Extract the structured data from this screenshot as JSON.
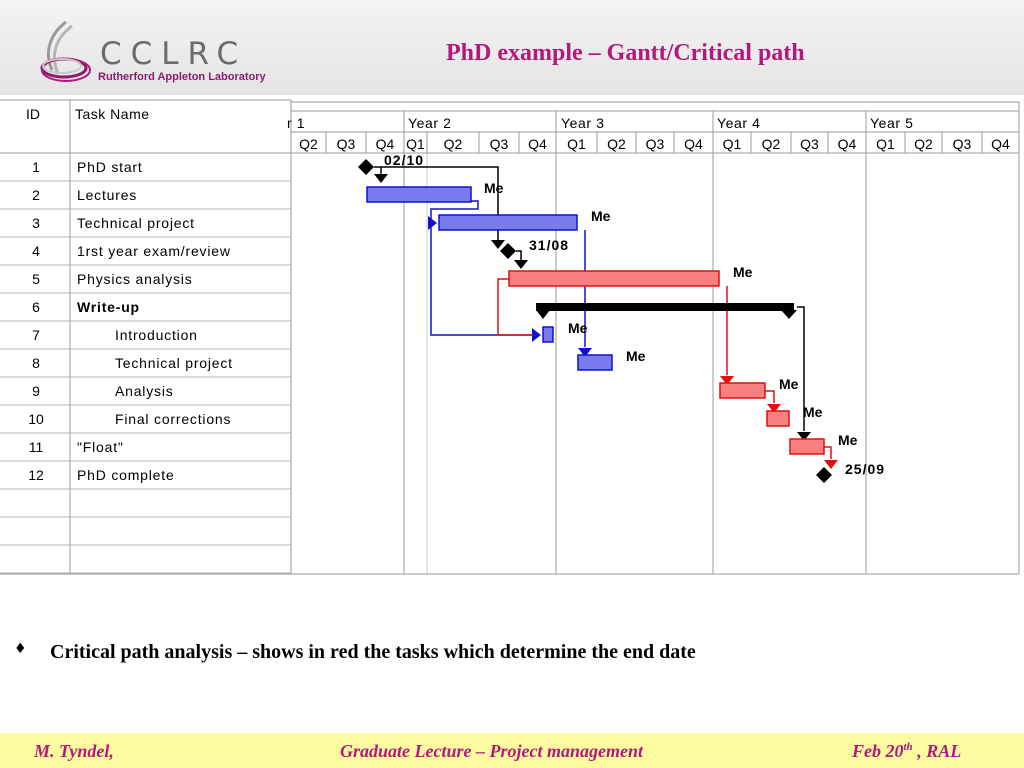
{
  "logo": {
    "name": "CCLRC",
    "subtitle": "Rutherford Appleton Laboratory"
  },
  "title": "PhD example – Gantt/Critical path",
  "table": {
    "headers": {
      "id": "ID",
      "task": "Task Name"
    },
    "rows": [
      {
        "id": "1",
        "name": "PhD start",
        "bold": false,
        "indent": false
      },
      {
        "id": "2",
        "name": "Lectures",
        "bold": false,
        "indent": false
      },
      {
        "id": "3",
        "name": "Technical project",
        "bold": false,
        "indent": false
      },
      {
        "id": "4",
        "name": "1rst year exam/review",
        "bold": false,
        "indent": false
      },
      {
        "id": "5",
        "name": "Physics analysis",
        "bold": false,
        "indent": false
      },
      {
        "id": "6",
        "name": "Write-up",
        "bold": true,
        "indent": false
      },
      {
        "id": "7",
        "name": "Introduction",
        "bold": false,
        "indent": true
      },
      {
        "id": "8",
        "name": "Technical project",
        "bold": false,
        "indent": true
      },
      {
        "id": "9",
        "name": "Analysis",
        "bold": false,
        "indent": true
      },
      {
        "id": "10",
        "name": "Final corrections",
        "bold": false,
        "indent": true
      },
      {
        "id": "11",
        "name": "\"Float\"",
        "bold": false,
        "indent": false
      },
      {
        "id": "12",
        "name": "PhD complete",
        "bold": false,
        "indent": false
      }
    ]
  },
  "timeline": {
    "years": [
      "r 1",
      "Year 2",
      "Year 3",
      "Year 4",
      "Year 5"
    ],
    "quarters": [
      "Q2",
      "Q3",
      "Q4",
      "Q1",
      "Q2",
      "Q3",
      "Q4",
      "Q1",
      "Q2",
      "Q3",
      "Q4",
      "Q1",
      "Q2",
      "Q3",
      "Q4",
      "Q1",
      "Q2",
      "Q3",
      "Q4"
    ]
  },
  "resource_label": "Me",
  "milestones": [
    {
      "row": 1,
      "label": "02/10"
    },
    {
      "row": 4,
      "label": "31/08"
    },
    {
      "row": 12,
      "label": "25/09"
    }
  ],
  "colors": {
    "title": "#b3197b",
    "noncritical_bar": "#7b7bf0",
    "noncritical_edge": "#1111cc",
    "critical_bar": "#f78080",
    "critical_edge": "#dd1111",
    "summary": "#000000",
    "footer_bg": "#fdfba0"
  },
  "bullet": {
    "glyph": "♦",
    "text": "Critical path analysis – shows in red the tasks which determine the end date"
  },
  "footer": {
    "author": "M. Tyndel,",
    "course": "Graduate Lecture – Project management",
    "date": "Feb 20",
    "date_sup": "th",
    "place": " , RAL"
  }
}
